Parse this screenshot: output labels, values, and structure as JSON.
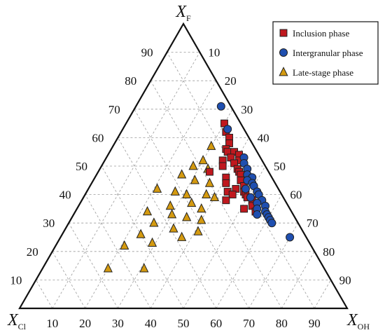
{
  "chart_data": {
    "type": "ternary-scatter",
    "vertices": {
      "top": {
        "label": "X",
        "subscript": "F"
      },
      "left": {
        "label": "X",
        "subscript": "Cl"
      },
      "right": {
        "label": "X",
        "subscript": "OH"
      }
    },
    "ticks": {
      "F": [
        "10",
        "20",
        "30",
        "40",
        "50",
        "60",
        "70",
        "80",
        "90"
      ],
      "OH": [
        "90",
        "80",
        "70",
        "60",
        "50",
        "40",
        "30",
        "20",
        "10"
      ],
      "Cl": [
        "10",
        "20",
        "30",
        "40",
        "50",
        "60",
        "70",
        "80",
        "90"
      ]
    },
    "grid": true,
    "legend_position": "top-right",
    "series": [
      {
        "name": "Inclusion phase",
        "marker": "square",
        "color": "#c0181e",
        "points": [
          {
            "F": 65,
            "OH": 30,
            "Cl": 5
          },
          {
            "F": 62,
            "OH": 32,
            "Cl": 6
          },
          {
            "F": 60,
            "OH": 34,
            "Cl": 6
          },
          {
            "F": 58,
            "OH": 35,
            "Cl": 7
          },
          {
            "F": 56,
            "OH": 35,
            "Cl": 9
          },
          {
            "F": 55,
            "OH": 36,
            "Cl": 9
          },
          {
            "F": 55,
            "OH": 38,
            "Cl": 7
          },
          {
            "F": 54,
            "OH": 40,
            "Cl": 6
          },
          {
            "F": 53,
            "OH": 38,
            "Cl": 9
          },
          {
            "F": 52,
            "OH": 41,
            "Cl": 7
          },
          {
            "F": 52,
            "OH": 36,
            "Cl": 12
          },
          {
            "F": 51,
            "OH": 40,
            "Cl": 9
          },
          {
            "F": 50,
            "OH": 37,
            "Cl": 13
          },
          {
            "F": 49,
            "OH": 42,
            "Cl": 9
          },
          {
            "F": 48,
            "OH": 43,
            "Cl": 9
          },
          {
            "F": 48,
            "OH": 34,
            "Cl": 18
          },
          {
            "F": 47,
            "OH": 44,
            "Cl": 9
          },
          {
            "F": 46,
            "OH": 40,
            "Cl": 14
          },
          {
            "F": 45,
            "OH": 45,
            "Cl": 10
          },
          {
            "F": 44,
            "OH": 41,
            "Cl": 15
          },
          {
            "F": 43,
            "OH": 47,
            "Cl": 10
          },
          {
            "F": 42,
            "OH": 45,
            "Cl": 13
          },
          {
            "F": 41,
            "OH": 48,
            "Cl": 11
          },
          {
            "F": 41,
            "OH": 43,
            "Cl": 16
          },
          {
            "F": 40,
            "OH": 49,
            "Cl": 11
          },
          {
            "F": 40,
            "OH": 45,
            "Cl": 15
          },
          {
            "F": 39,
            "OH": 50,
            "Cl": 11
          },
          {
            "F": 38,
            "OH": 52,
            "Cl": 10
          },
          {
            "F": 38,
            "OH": 44,
            "Cl": 18
          },
          {
            "F": 36,
            "OH": 53,
            "Cl": 11
          },
          {
            "F": 35,
            "OH": 51,
            "Cl": 14
          },
          {
            "F": 34,
            "OH": 55,
            "Cl": 11
          }
        ]
      },
      {
        "name": "Intergranular phase",
        "marker": "circle",
        "color": "#1f4fb0",
        "points": [
          {
            "F": 71,
            "OH": 26,
            "Cl": 3
          },
          {
            "F": 63,
            "OH": 32,
            "Cl": 5
          },
          {
            "F": 53,
            "OH": 42,
            "Cl": 5
          },
          {
            "F": 51,
            "OH": 43,
            "Cl": 6
          },
          {
            "F": 49,
            "OH": 45,
            "Cl": 6
          },
          {
            "F": 47,
            "OH": 46,
            "Cl": 7
          },
          {
            "F": 46,
            "OH": 48,
            "Cl": 6
          },
          {
            "F": 45,
            "OH": 47,
            "Cl": 8
          },
          {
            "F": 44,
            "OH": 49,
            "Cl": 7
          },
          {
            "F": 43,
            "OH": 50,
            "Cl": 7
          },
          {
            "F": 42,
            "OH": 48,
            "Cl": 10
          },
          {
            "F": 41,
            "OH": 52,
            "Cl": 7
          },
          {
            "F": 40,
            "OH": 53,
            "Cl": 7
          },
          {
            "F": 39,
            "OH": 51,
            "Cl": 10
          },
          {
            "F": 38,
            "OH": 55,
            "Cl": 7
          },
          {
            "F": 37,
            "OH": 54,
            "Cl": 9
          },
          {
            "F": 36,
            "OH": 57,
            "Cl": 7
          },
          {
            "F": 35,
            "OH": 55,
            "Cl": 10
          },
          {
            "F": 34,
            "OH": 58,
            "Cl": 8
          },
          {
            "F": 33,
            "OH": 59,
            "Cl": 8
          },
          {
            "F": 33,
            "OH": 56,
            "Cl": 11
          },
          {
            "F": 32,
            "OH": 60,
            "Cl": 8
          },
          {
            "F": 31,
            "OH": 61,
            "Cl": 8
          },
          {
            "F": 30,
            "OH": 62,
            "Cl": 8
          },
          {
            "F": 25,
            "OH": 70,
            "Cl": 5
          }
        ]
      },
      {
        "name": "Late-stage phase",
        "marker": "triangle",
        "color": "#d49a10",
        "points": [
          {
            "F": 57,
            "OH": 30,
            "Cl": 13
          },
          {
            "F": 52,
            "OH": 30,
            "Cl": 18
          },
          {
            "F": 50,
            "OH": 28,
            "Cl": 22
          },
          {
            "F": 49,
            "OH": 33,
            "Cl": 18
          },
          {
            "F": 47,
            "OH": 26,
            "Cl": 27
          },
          {
            "F": 45,
            "OH": 31,
            "Cl": 24
          },
          {
            "F": 44,
            "OH": 36,
            "Cl": 20
          },
          {
            "F": 42,
            "OH": 21,
            "Cl": 37
          },
          {
            "F": 41,
            "OH": 27,
            "Cl": 32
          },
          {
            "F": 40,
            "OH": 31,
            "Cl": 29
          },
          {
            "F": 40,
            "OH": 37,
            "Cl": 23
          },
          {
            "F": 39,
            "OH": 40,
            "Cl": 21
          },
          {
            "F": 37,
            "OH": 34,
            "Cl": 29
          },
          {
            "F": 36,
            "OH": 28,
            "Cl": 36
          },
          {
            "F": 35,
            "OH": 38,
            "Cl": 27
          },
          {
            "F": 34,
            "OH": 22,
            "Cl": 44
          },
          {
            "F": 33,
            "OH": 30,
            "Cl": 37
          },
          {
            "F": 32,
            "OH": 35,
            "Cl": 33
          },
          {
            "F": 31,
            "OH": 40,
            "Cl": 29
          },
          {
            "F": 30,
            "OH": 26,
            "Cl": 44
          },
          {
            "F": 28,
            "OH": 33,
            "Cl": 39
          },
          {
            "F": 27,
            "OH": 41,
            "Cl": 32
          },
          {
            "F": 26,
            "OH": 24,
            "Cl": 50
          },
          {
            "F": 25,
            "OH": 37,
            "Cl": 38
          },
          {
            "F": 23,
            "OH": 29,
            "Cl": 48
          },
          {
            "F": 22,
            "OH": 21,
            "Cl": 57
          },
          {
            "F": 14,
            "OH": 20,
            "Cl": 66
          },
          {
            "F": 14,
            "OH": 31,
            "Cl": 55
          }
        ]
      }
    ]
  }
}
